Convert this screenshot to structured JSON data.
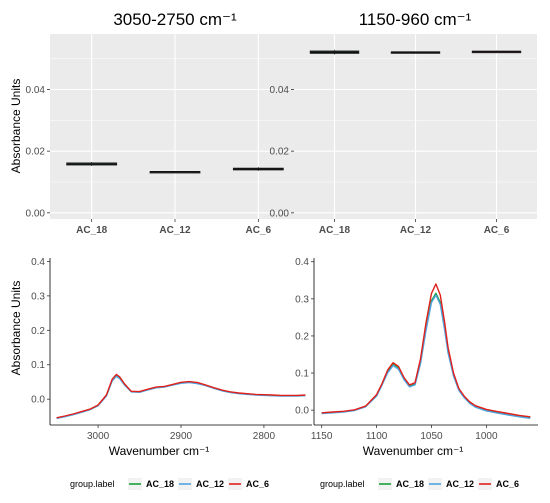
{
  "legend": {
    "title": "group.label",
    "entries": [
      {
        "label": "AC_18",
        "color": "#1a9e3a"
      },
      {
        "label": "AC_12",
        "color": "#4fa3e0"
      },
      {
        "label": "AC_6",
        "color": "#e0201a"
      }
    ]
  },
  "chart_data": [
    {
      "type": "box",
      "title": "3050-2750 cm⁻¹",
      "xlabel": "",
      "ylabel": "Absorbance Units",
      "ylim": [
        -0.002,
        0.058
      ],
      "yticks": [
        0.0,
        0.02,
        0.04
      ],
      "ytick_labels": [
        "0.00",
        "0.02",
        "0.04"
      ],
      "grid": true,
      "categories": [
        "AC_18",
        "AC_12",
        "AC_6"
      ],
      "boxes": [
        {
          "min": 0.0152,
          "q1": 0.0155,
          "median": 0.0158,
          "q3": 0.0162,
          "max": 0.0165,
          "fill": "#3a7a48"
        },
        {
          "min": 0.0131,
          "q1": 0.0132,
          "median": 0.0133,
          "q3": 0.0134,
          "max": 0.0135,
          "fill": "#6a9dbd"
        },
        {
          "min": 0.0136,
          "q1": 0.0139,
          "median": 0.0142,
          "q3": 0.0145,
          "max": 0.0148,
          "fill": "#a8585a"
        }
      ]
    },
    {
      "type": "box",
      "title": "1150-960 cm⁻¹",
      "xlabel": "",
      "ylabel": "",
      "ylim": [
        -0.002,
        0.058
      ],
      "yticks": [
        0.0,
        0.02,
        0.04
      ],
      "ytick_labels": [
        "0.00",
        "0.02",
        "0.04"
      ],
      "grid": true,
      "categories": [
        "AC_18",
        "AC_12",
        "AC_6"
      ],
      "boxes": [
        {
          "min": 0.0513,
          "q1": 0.0517,
          "median": 0.0521,
          "q3": 0.0525,
          "max": 0.0529,
          "fill": "#3a7a48"
        },
        {
          "min": 0.0519,
          "q1": 0.052,
          "median": 0.0521,
          "q3": 0.0522,
          "max": 0.0523,
          "fill": "#6a9dbd"
        },
        {
          "min": 0.052,
          "q1": 0.0521,
          "median": 0.0523,
          "q3": 0.0524,
          "max": 0.0526,
          "fill": "#a8585a"
        }
      ]
    },
    {
      "type": "line",
      "title": "",
      "xlabel": "Wavenumber cm⁻¹",
      "ylabel": "Absorbance Units",
      "xlim": [
        3058,
        2742
      ],
      "xreversed": true,
      "ylim": [
        -0.075,
        0.41
      ],
      "xticks": [
        3000,
        2900,
        2800
      ],
      "yticks": [
        0.0,
        0.1,
        0.2,
        0.3,
        0.4
      ],
      "ytick_labels": [
        "0.0",
        "0.1",
        "0.2",
        "0.3",
        "0.4"
      ],
      "grid": false,
      "series": [
        {
          "name": "AC_18",
          "color": "#1a9e3a",
          "x": [
            3050,
            3040,
            3030,
            3020,
            3010,
            3000,
            2990,
            2983,
            2978,
            2974,
            2968,
            2960,
            2950,
            2940,
            2930,
            2920,
            2910,
            2900,
            2890,
            2880,
            2870,
            2860,
            2850,
            2840,
            2830,
            2820,
            2810,
            2800,
            2790,
            2780,
            2770,
            2760,
            2750
          ],
          "y": [
            -0.055,
            -0.05,
            -0.044,
            -0.037,
            -0.03,
            -0.018,
            0.01,
            0.055,
            0.068,
            0.062,
            0.042,
            0.022,
            0.021,
            0.028,
            0.034,
            0.036,
            0.042,
            0.048,
            0.05,
            0.047,
            0.04,
            0.032,
            0.025,
            0.02,
            0.017,
            0.015,
            0.013,
            0.012,
            0.011,
            0.01,
            0.01,
            0.01,
            0.011
          ]
        },
        {
          "name": "AC_12",
          "color": "#4fa3e0",
          "x": [
            3050,
            3040,
            3030,
            3020,
            3010,
            3000,
            2990,
            2983,
            2978,
            2974,
            2968,
            2960,
            2950,
            2940,
            2930,
            2920,
            2910,
            2900,
            2890,
            2880,
            2870,
            2860,
            2850,
            2840,
            2830,
            2820,
            2810,
            2800,
            2790,
            2780,
            2770,
            2760,
            2750
          ],
          "y": [
            -0.056,
            -0.051,
            -0.045,
            -0.038,
            -0.031,
            -0.019,
            0.009,
            0.053,
            0.066,
            0.06,
            0.041,
            0.021,
            0.02,
            0.027,
            0.033,
            0.035,
            0.041,
            0.046,
            0.048,
            0.045,
            0.039,
            0.031,
            0.024,
            0.019,
            0.016,
            0.014,
            0.012,
            0.011,
            0.01,
            0.009,
            0.009,
            0.009,
            0.01
          ]
        },
        {
          "name": "AC_6",
          "color": "#e0201a",
          "x": [
            3050,
            3040,
            3030,
            3020,
            3010,
            3000,
            2990,
            2983,
            2978,
            2974,
            2968,
            2960,
            2950,
            2940,
            2930,
            2920,
            2910,
            2900,
            2890,
            2880,
            2870,
            2860,
            2850,
            2840,
            2830,
            2820,
            2810,
            2800,
            2790,
            2780,
            2770,
            2760,
            2750
          ],
          "y": [
            -0.054,
            -0.049,
            -0.043,
            -0.036,
            -0.029,
            -0.017,
            0.012,
            0.058,
            0.072,
            0.065,
            0.044,
            0.023,
            0.022,
            0.029,
            0.035,
            0.037,
            0.043,
            0.049,
            0.051,
            0.048,
            0.041,
            0.033,
            0.026,
            0.021,
            0.018,
            0.016,
            0.014,
            0.013,
            0.012,
            0.011,
            0.011,
            0.011,
            0.012
          ]
        }
      ]
    },
    {
      "type": "line",
      "title": "",
      "xlabel": "Wavenumber cm⁻¹",
      "ylabel": "",
      "xlim": [
        1157,
        953
      ],
      "xreversed": true,
      "ylim": [
        -0.04,
        0.41
      ],
      "xticks": [
        1150,
        1100,
        1050,
        1000
      ],
      "yticks": [
        0.0,
        0.1,
        0.2,
        0.3,
        0.4
      ],
      "ytick_labels": [
        "0.0",
        "0.1",
        "0.2",
        "0.3",
        "0.4"
      ],
      "grid": false,
      "series": [
        {
          "name": "AC_18",
          "color": "#1a9e3a",
          "x": [
            1150,
            1140,
            1130,
            1120,
            1110,
            1100,
            1095,
            1090,
            1085,
            1080,
            1075,
            1070,
            1065,
            1060,
            1055,
            1050,
            1046,
            1042,
            1038,
            1035,
            1030,
            1025,
            1020,
            1015,
            1010,
            1000,
            990,
            980,
            970,
            960
          ],
          "y": [
            -0.008,
            -0.006,
            -0.004,
            0.0,
            0.01,
            0.04,
            0.07,
            0.105,
            0.125,
            0.115,
            0.085,
            0.065,
            0.07,
            0.13,
            0.22,
            0.295,
            0.315,
            0.29,
            0.22,
            0.16,
            0.095,
            0.055,
            0.035,
            0.02,
            0.01,
            0.0,
            -0.006,
            -0.011,
            -0.016,
            -0.02
          ]
        },
        {
          "name": "AC_12",
          "color": "#4fa3e0",
          "x": [
            1150,
            1140,
            1130,
            1120,
            1110,
            1100,
            1095,
            1090,
            1085,
            1080,
            1075,
            1070,
            1065,
            1060,
            1055,
            1050,
            1046,
            1042,
            1038,
            1035,
            1030,
            1025,
            1020,
            1015,
            1010,
            1000,
            990,
            980,
            970,
            960
          ],
          "y": [
            -0.009,
            -0.007,
            -0.005,
            -0.001,
            0.009,
            0.038,
            0.068,
            0.1,
            0.12,
            0.11,
            0.082,
            0.063,
            0.068,
            0.125,
            0.215,
            0.29,
            0.31,
            0.285,
            0.215,
            0.155,
            0.092,
            0.053,
            0.033,
            0.018,
            0.008,
            -0.002,
            -0.008,
            -0.013,
            -0.018,
            -0.022
          ]
        },
        {
          "name": "AC_6",
          "color": "#e0201a",
          "x": [
            1150,
            1140,
            1130,
            1120,
            1110,
            1100,
            1095,
            1090,
            1085,
            1080,
            1075,
            1070,
            1065,
            1060,
            1055,
            1050,
            1046,
            1042,
            1038,
            1035,
            1030,
            1025,
            1020,
            1015,
            1010,
            1000,
            990,
            980,
            970,
            960
          ],
          "y": [
            -0.007,
            -0.005,
            -0.003,
            0.001,
            0.011,
            0.042,
            0.072,
            0.108,
            0.128,
            0.118,
            0.088,
            0.068,
            0.074,
            0.138,
            0.235,
            0.315,
            0.34,
            0.31,
            0.235,
            0.17,
            0.1,
            0.058,
            0.037,
            0.022,
            0.012,
            0.002,
            -0.004,
            -0.009,
            -0.014,
            -0.018
          ]
        }
      ]
    }
  ]
}
